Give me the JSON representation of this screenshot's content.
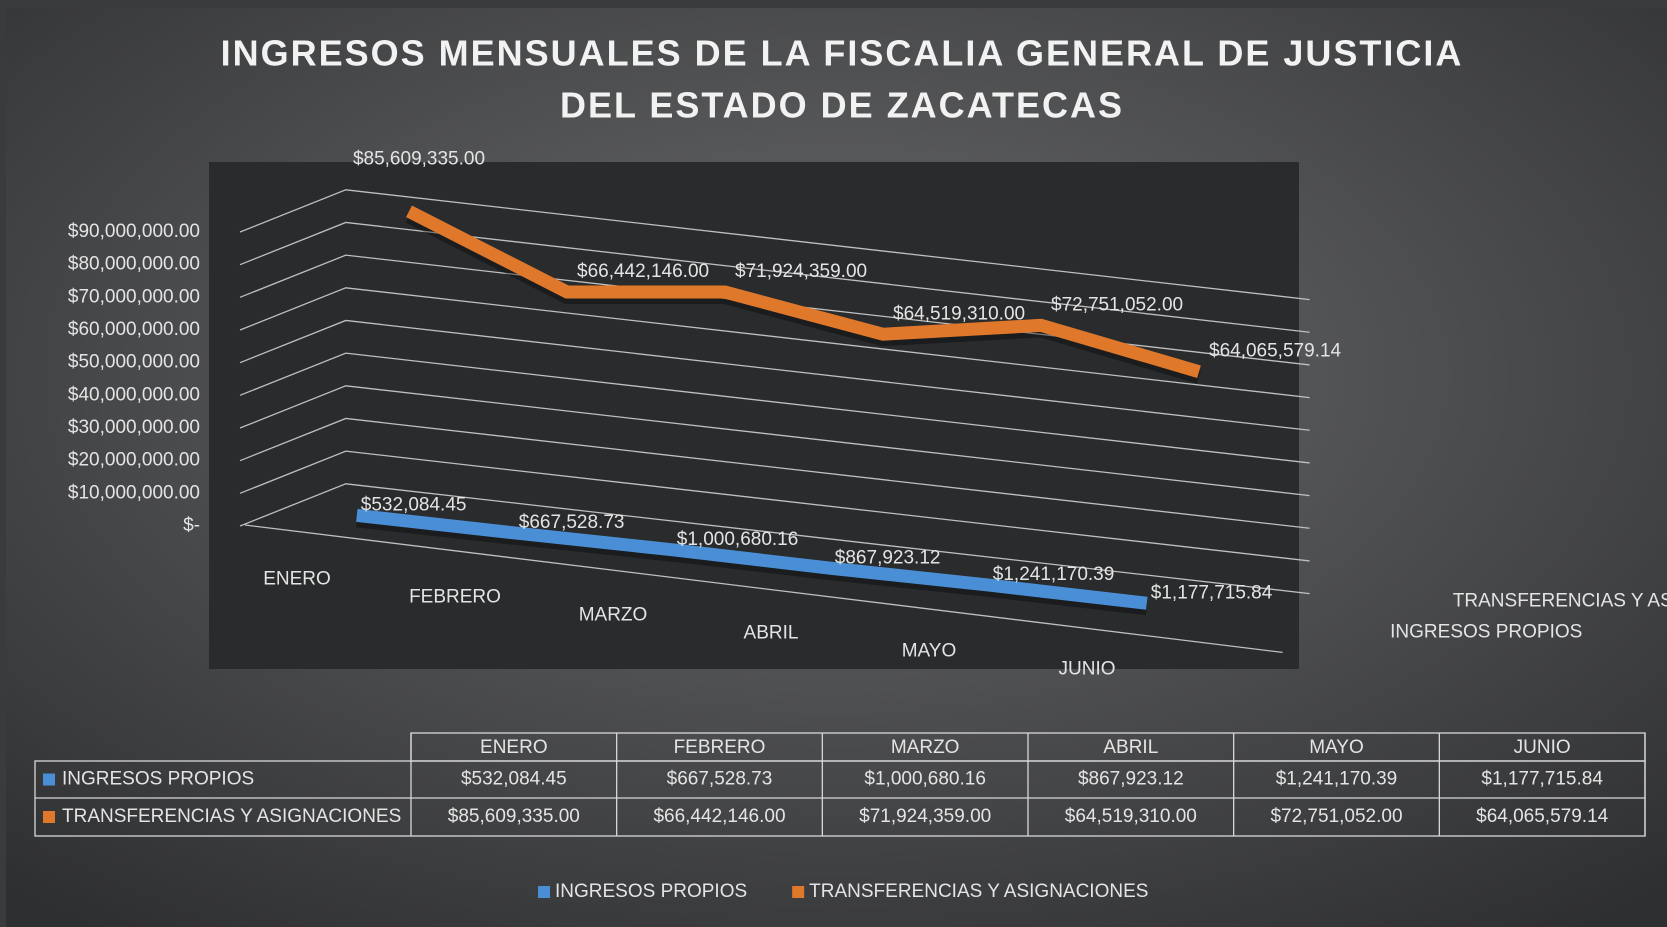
{
  "chart_data": {
    "type": "line",
    "title": [
      "INGRESOS MENSUALES DE LA FISCALIA GENERAL DE JUSTICIA",
      "DEL ESTADO DE ZACATECAS"
    ],
    "categories": [
      "ENERO",
      "FEBRERO",
      "MARZO",
      "ABRIL",
      "MAYO",
      "JUNIO"
    ],
    "series": [
      {
        "name": "INGRESOS PROPIOS",
        "color": "#4a8fd6",
        "values": [
          532084.45,
          667528.73,
          1000680.16,
          867923.12,
          1241170.39,
          1177715.84
        ],
        "value_labels": [
          "$532,084.45",
          "$667,528.73",
          "$1,000,680.16",
          "$867,923.12",
          "$1,241,170.39",
          "$1,177,715.84"
        ]
      },
      {
        "name": "TRANSFERENCIAS Y ASIGNACIONES",
        "color": "#e0782c",
        "values": [
          85609335.0,
          66442146.0,
          71924359.0,
          64519310.0,
          72751052.0,
          64065579.14
        ],
        "value_labels": [
          "$85,609,335.00",
          "$66,442,146.00",
          "$71,924,359.00",
          "$64,519,310.00",
          "$72,751,052.00",
          "$64,065,579.14"
        ]
      }
    ],
    "ylim": [
      0,
      90000000
    ],
    "yticks": [
      {
        "value": 0,
        "label": "$-"
      },
      {
        "value": 10000000,
        "label": "$10,000,000.00"
      },
      {
        "value": 20000000,
        "label": "$20,000,000.00"
      },
      {
        "value": 30000000,
        "label": "$30,000,000.00"
      },
      {
        "value": 40000000,
        "label": "$40,000,000.00"
      },
      {
        "value": 50000000,
        "label": "$50,000,000.00"
      },
      {
        "value": 60000000,
        "label": "$60,000,000.00"
      },
      {
        "value": 70000000,
        "label": "$70,000,000.00"
      },
      {
        "value": 80000000,
        "label": "$80,000,000.00"
      },
      {
        "value": 90000000,
        "label": "$90,000,000.00"
      }
    ],
    "grid": true,
    "legend": "bottom",
    "data_table": true
  }
}
